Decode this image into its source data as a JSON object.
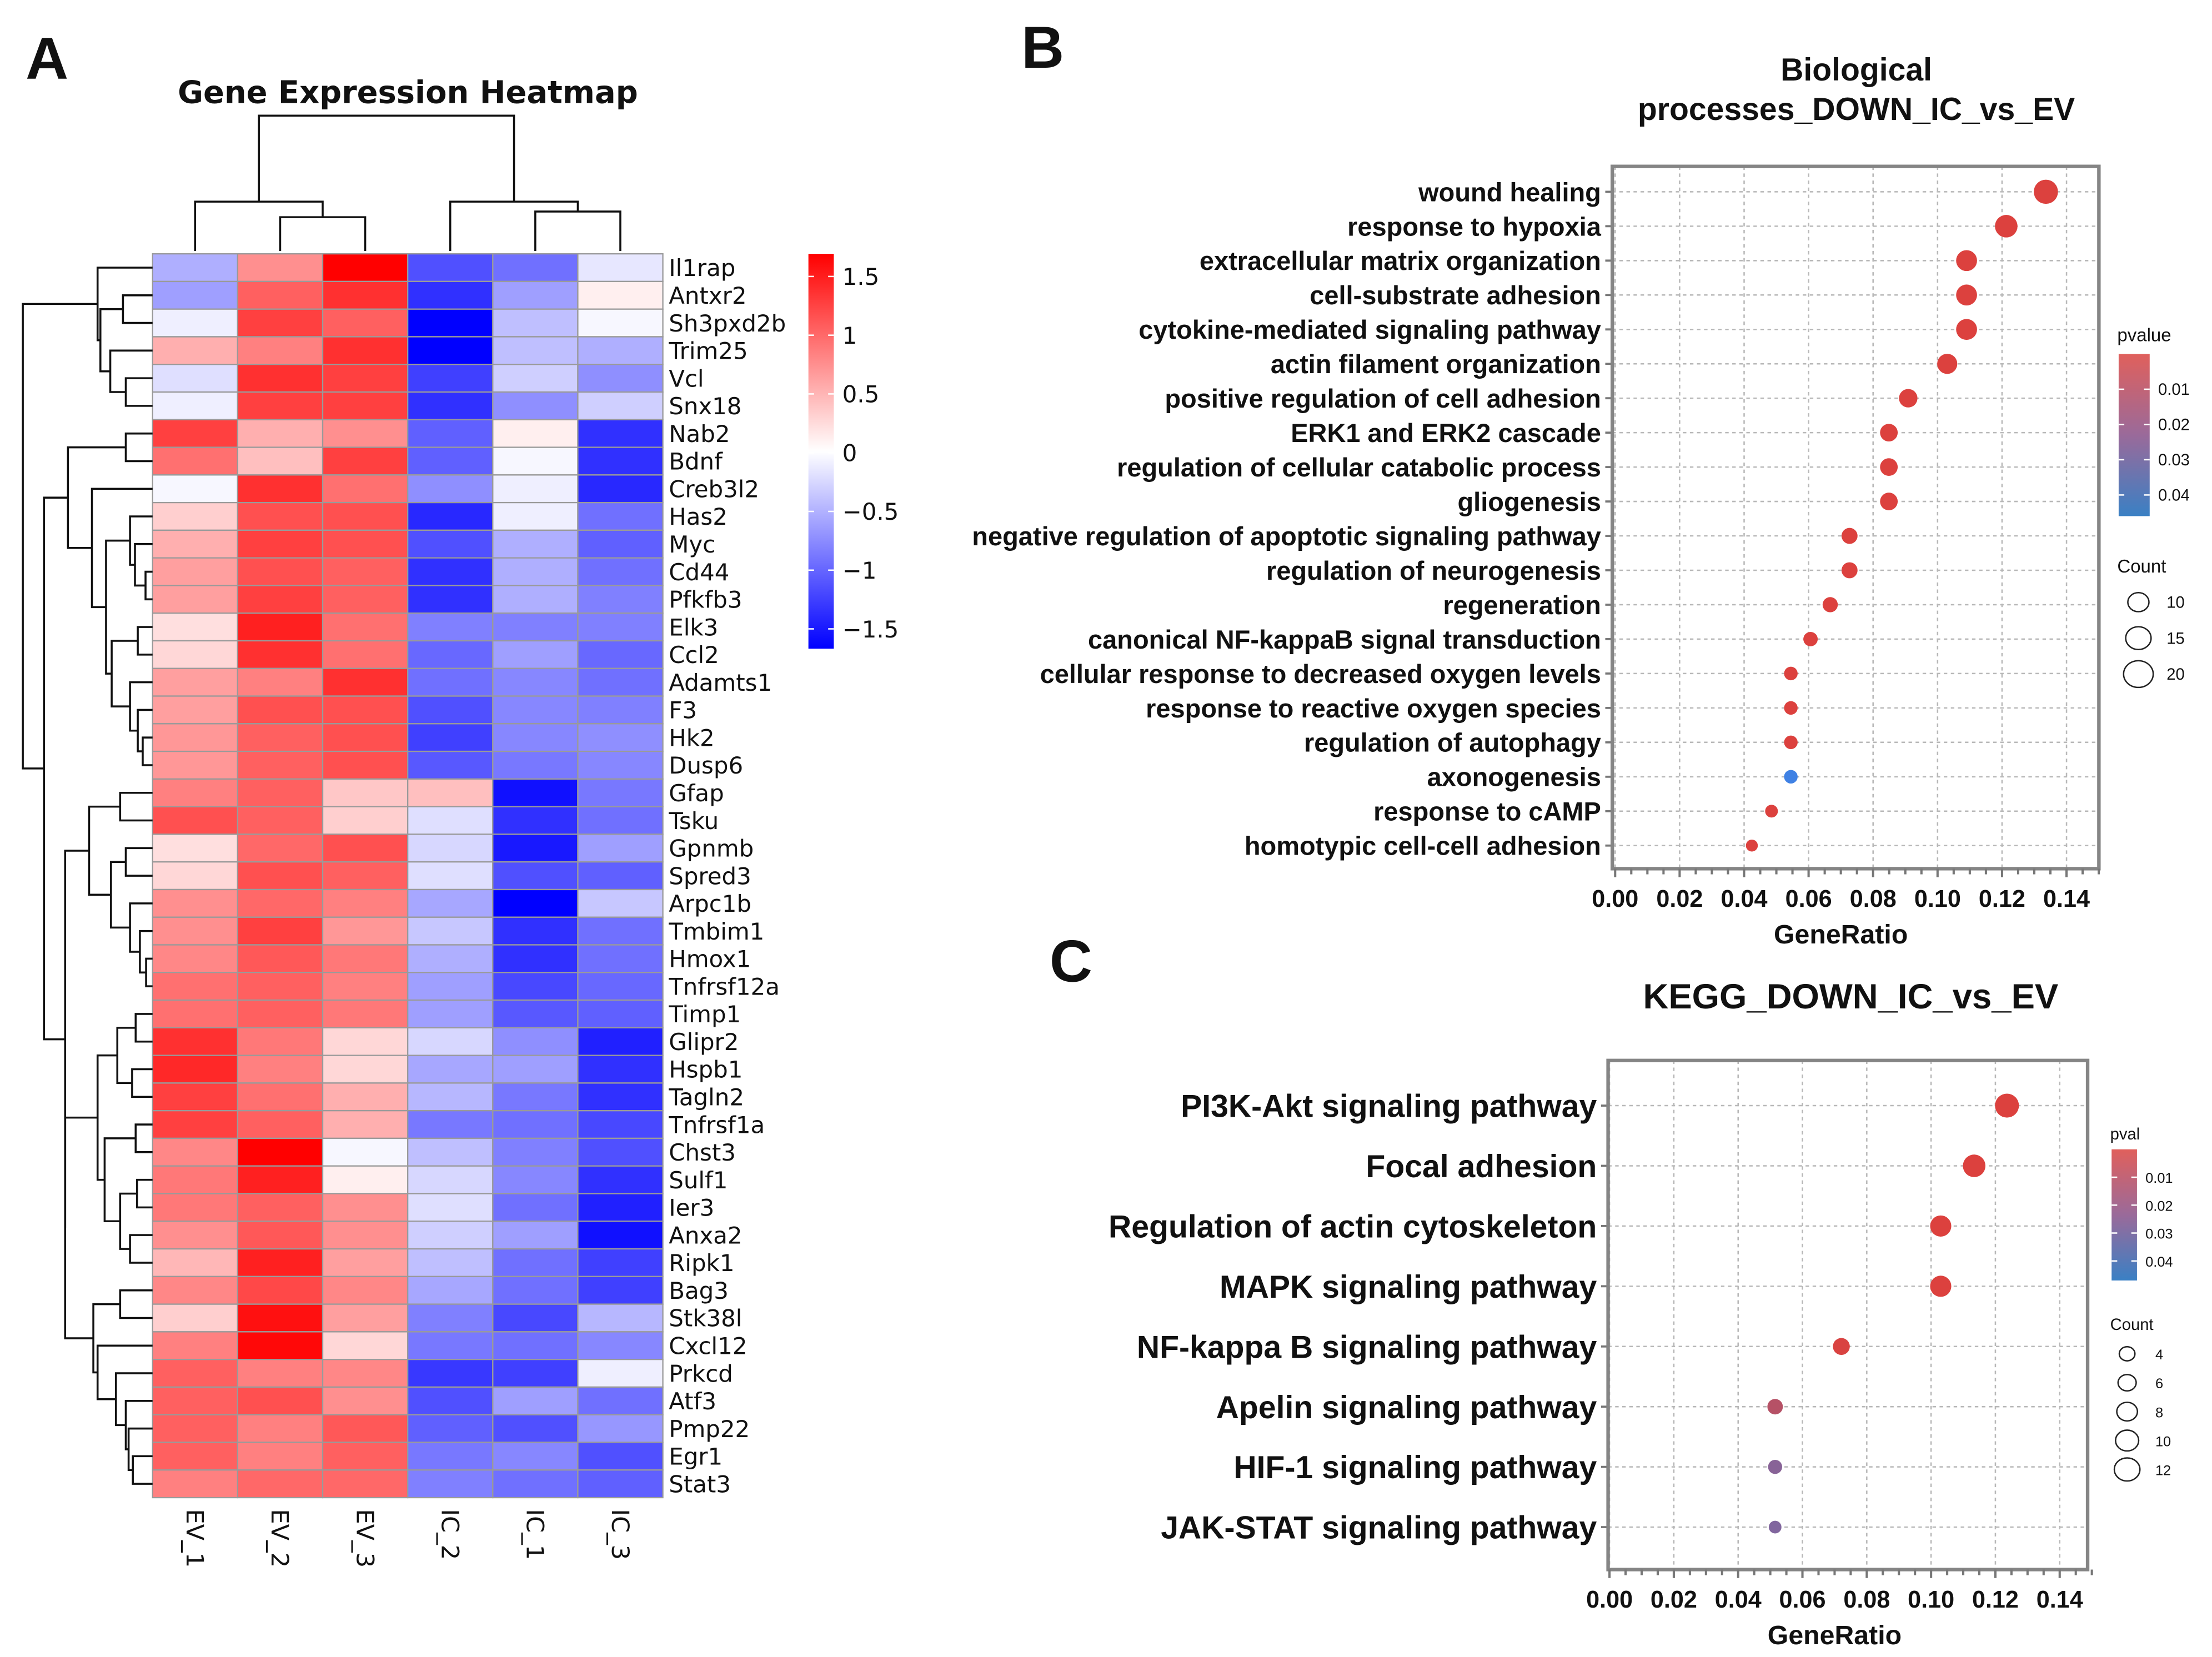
{
  "panel_labels": {
    "a": "A",
    "b": "B",
    "c": "C"
  },
  "colors": {
    "high": "#ff0000",
    "mid": "#ffffff",
    "low": "#0000ff",
    "dot_low_p": "#e0403a",
    "dot_high_p": "#3b82e8"
  },
  "chart_data": [
    {
      "type": "heatmap",
      "title": "Gene Expression Heatmap",
      "columns": [
        "EV_1",
        "EV_2",
        "EV_3",
        "IC_2",
        "IC_1",
        "IC_3"
      ],
      "rows": [
        "Il1rap",
        "Antxr2",
        "Sh3pxd2b",
        "Trim25",
        "Vcl",
        "Snx18",
        "Nab2",
        "Bdnf",
        "Creb3l2",
        "Has2",
        "Myc",
        "Cd44",
        "Pfkfb3",
        "Elk3",
        "Ccl2",
        "Adamts1",
        "F3",
        "Hk2",
        "Dusp6",
        "Gfap",
        "Tsku",
        "Gpnmb",
        "Spred3",
        "Arpc1b",
        "Tmbim1",
        "Hmox1",
        "Tnfrsf12a",
        "Timp1",
        "Glipr2",
        "Hspb1",
        "Tagln2",
        "Tnfrsf1a",
        "Chst3",
        "Sulf1",
        "Ier3",
        "Anxa2",
        "Ripk1",
        "Bag3",
        "Stk38l",
        "Cxcl12",
        "Prkcd",
        "Atf3",
        "Pmp22",
        "Egr1",
        "Stat3"
      ],
      "values": [
        [
          -0.5,
          0.7,
          1.6,
          -1.1,
          -0.9,
          -0.15
        ],
        [
          -0.6,
          1.0,
          1.3,
          -1.3,
          -0.6,
          0.1
        ],
        [
          -0.1,
          1.2,
          1.0,
          -1.6,
          -0.4,
          -0.05
        ],
        [
          0.5,
          0.8,
          1.3,
          -1.6,
          -0.4,
          -0.5
        ],
        [
          -0.2,
          1.3,
          1.2,
          -1.2,
          -0.3,
          -0.7
        ],
        [
          -0.1,
          1.2,
          1.2,
          -1.3,
          -0.7,
          -0.3
        ],
        [
          1.2,
          0.5,
          0.7,
          -1.0,
          0.1,
          -1.3
        ],
        [
          0.9,
          0.4,
          1.2,
          -1.0,
          -0.05,
          -1.3
        ],
        [
          -0.05,
          1.3,
          0.9,
          -0.7,
          -0.1,
          -1.35
        ],
        [
          0.3,
          1.1,
          1.1,
          -1.35,
          -0.1,
          -0.9
        ],
        [
          0.5,
          1.2,
          1.1,
          -1.1,
          -0.5,
          -1.0
        ],
        [
          0.6,
          1.1,
          1.0,
          -1.3,
          -0.5,
          -0.9
        ],
        [
          0.6,
          1.2,
          1.0,
          -1.3,
          -0.5,
          -0.8
        ],
        [
          0.2,
          1.4,
          0.9,
          -0.8,
          -0.8,
          -0.8
        ],
        [
          0.25,
          1.3,
          0.9,
          -0.95,
          -0.6,
          -0.95
        ],
        [
          0.6,
          0.8,
          1.3,
          -0.9,
          -0.75,
          -0.9
        ],
        [
          0.6,
          1.1,
          1.1,
          -1.1,
          -0.75,
          -0.8
        ],
        [
          0.65,
          1.0,
          1.1,
          -1.2,
          -0.75,
          -0.7
        ],
        [
          0.65,
          1.0,
          1.1,
          -1.05,
          -0.85,
          -0.75
        ],
        [
          0.8,
          1.0,
          0.35,
          0.4,
          -1.5,
          -0.85
        ],
        [
          1.1,
          1.0,
          0.3,
          -0.2,
          -1.3,
          -0.9
        ],
        [
          0.2,
          0.95,
          1.1,
          -0.25,
          -1.45,
          -0.6
        ],
        [
          0.25,
          1.1,
          1.0,
          -0.2,
          -1.1,
          -1.0
        ],
        [
          0.7,
          0.95,
          0.8,
          -0.55,
          -1.6,
          -0.35
        ],
        [
          0.7,
          1.2,
          0.65,
          -0.35,
          -1.3,
          -0.9
        ],
        [
          0.75,
          1.05,
          0.85,
          -0.5,
          -1.3,
          -0.9
        ],
        [
          0.9,
          1.0,
          0.8,
          -0.6,
          -1.15,
          -0.95
        ],
        [
          0.9,
          1.0,
          0.85,
          -0.6,
          -1.05,
          -1.0
        ],
        [
          1.3,
          0.85,
          0.25,
          -0.25,
          -0.7,
          -1.4
        ],
        [
          1.35,
          0.8,
          0.25,
          -0.55,
          -0.6,
          -1.3
        ],
        [
          1.2,
          0.9,
          0.5,
          -0.45,
          -0.85,
          -1.3
        ],
        [
          1.2,
          1.0,
          0.5,
          -0.85,
          -0.9,
          -1.15
        ],
        [
          0.75,
          1.6,
          -0.05,
          -0.4,
          -0.8,
          -1.1
        ],
        [
          0.85,
          1.4,
          0.1,
          -0.25,
          -0.75,
          -1.3
        ],
        [
          0.85,
          1.0,
          0.7,
          -0.2,
          -0.9,
          -1.4
        ],
        [
          0.7,
          1.05,
          0.7,
          -0.3,
          -0.6,
          -1.5
        ],
        [
          0.45,
          1.4,
          0.6,
          -0.4,
          -0.9,
          -1.2
        ],
        [
          0.75,
          1.15,
          0.75,
          -0.55,
          -0.9,
          -1.2
        ],
        [
          0.3,
          1.5,
          0.6,
          -0.8,
          -1.15,
          -0.45
        ],
        [
          0.8,
          1.55,
          0.25,
          -0.85,
          -0.9,
          -0.75
        ],
        [
          1.0,
          0.8,
          0.75,
          -1.25,
          -1.2,
          -0.1
        ],
        [
          1.0,
          1.1,
          0.7,
          -1.1,
          -0.6,
          -0.9
        ],
        [
          1.0,
          0.8,
          1.05,
          -1.0,
          -1.1,
          -0.65
        ],
        [
          1.0,
          0.8,
          1.0,
          -0.85,
          -0.75,
          -1.1
        ],
        [
          0.8,
          0.95,
          0.95,
          -0.8,
          -0.9,
          -1.0
        ]
      ],
      "color_scale": {
        "min": -1.6,
        "max": 1.6,
        "ticks": [
          1.5,
          1,
          0.5,
          0,
          -0.5,
          -1,
          -1.5
        ],
        "tick_labels": [
          "1.5",
          "1",
          "0.5",
          "0",
          "−0.5",
          "−1",
          "−1.5"
        ]
      }
    },
    {
      "type": "scatter",
      "title_lines": [
        "Biological",
        "processes_DOWN_IC_vs_EV"
      ],
      "xlabel": "GeneRatio",
      "xlim": [
        0,
        0.15
      ],
      "xticks": [
        0,
        0.02,
        0.04,
        0.06,
        0.08,
        0.1,
        0.12,
        0.14
      ],
      "xtick_labels": [
        "0.00",
        "0.02",
        "0.04",
        "0.06",
        "0.08",
        "0.10",
        "0.12",
        "0.14"
      ],
      "terms": [
        "wound healing",
        "response to hypoxia",
        "extracellular matrix organization",
        "cell-substrate adhesion",
        "cytokine-mediated signaling pathway",
        "actin filament organization",
        "positive regulation of cell adhesion",
        "ERK1 and ERK2 cascade",
        "regulation of cellular catabolic process",
        "gliogenesis",
        "negative regulation of apoptotic signaling pathway",
        "regulation of neurogenesis",
        "regeneration",
        "canonical NF-kappaB signal transduction",
        "cellular response to decreased oxygen levels",
        "response to reactive oxygen species",
        "regulation of autophagy",
        "axonogenesis",
        "response to cAMP",
        "homotypic cell-cell adhesion"
      ],
      "gene_ratio": [
        0.1336,
        0.1213,
        0.109,
        0.109,
        0.109,
        0.103,
        0.0909,
        0.0849,
        0.0849,
        0.0849,
        0.0727,
        0.0727,
        0.0667,
        0.0606,
        0.0545,
        0.0545,
        0.0545,
        0.0545,
        0.0485,
        0.0424
      ],
      "count": [
        22,
        20,
        18,
        18,
        18,
        17,
        15,
        14,
        14,
        14,
        12,
        12,
        11,
        10,
        9,
        9,
        9,
        9,
        8,
        7
      ],
      "pvalue": [
        0.001,
        0.001,
        0.001,
        0.001,
        0.001,
        0.001,
        0.001,
        0.001,
        0.001,
        0.001,
        0.001,
        0.001,
        0.001,
        0.001,
        0.001,
        0.001,
        0.001,
        0.045,
        0.001,
        0.001
      ],
      "legend_color": {
        "title": "pvalue",
        "range": [
          0,
          0.046
        ],
        "ticks": [
          0.01,
          0.02,
          0.03,
          0.04
        ],
        "tick_labels": [
          "0.01",
          "0.02",
          "0.03",
          "0.04"
        ]
      },
      "legend_size": {
        "title": "Count",
        "values": [
          10,
          15,
          20
        ],
        "labels": [
          "10",
          "15",
          "20"
        ]
      }
    },
    {
      "type": "scatter",
      "title": "KEGG_DOWN_IC_vs_EV",
      "xlabel": "GeneRatio",
      "xlim": [
        0,
        0.15
      ],
      "xticks": [
        0,
        0.02,
        0.04,
        0.06,
        0.08,
        0.1,
        0.12,
        0.14
      ],
      "xtick_labels": [
        "0.00",
        "0.02",
        "0.04",
        "0.06",
        "0.08",
        "0.10",
        "0.12",
        "0.14"
      ],
      "terms": [
        "PI3K-Akt signaling pathway",
        "Focal adhesion",
        "Regulation of actin cytoskeleton",
        "MAPK signaling pathway",
        "NF-kappa B signaling pathway",
        "Apelin signaling pathway",
        "HIF-1 signaling pathway",
        "JAK-STAT signaling pathway"
      ],
      "gene_ratio": [
        0.1236,
        0.1134,
        0.103,
        0.103,
        0.0721,
        0.0515,
        0.0515,
        0.0515
      ],
      "count": [
        12,
        11,
        10,
        10,
        7,
        6,
        5,
        4
      ],
      "pvalue": [
        0.001,
        0.001,
        0.001,
        0.001,
        0.002,
        0.012,
        0.025,
        0.027
      ],
      "legend_color": {
        "title": "pval",
        "range": [
          0,
          0.047
        ],
        "ticks": [
          0.01,
          0.02,
          0.03,
          0.04
        ],
        "tick_labels": [
          "0.01",
          "0.02",
          "0.03",
          "0.04"
        ]
      },
      "legend_size": {
        "title": "Count",
        "values": [
          4,
          6,
          8,
          10,
          12
        ],
        "labels": [
          "4",
          "6",
          "8",
          "10",
          "12"
        ]
      }
    }
  ]
}
